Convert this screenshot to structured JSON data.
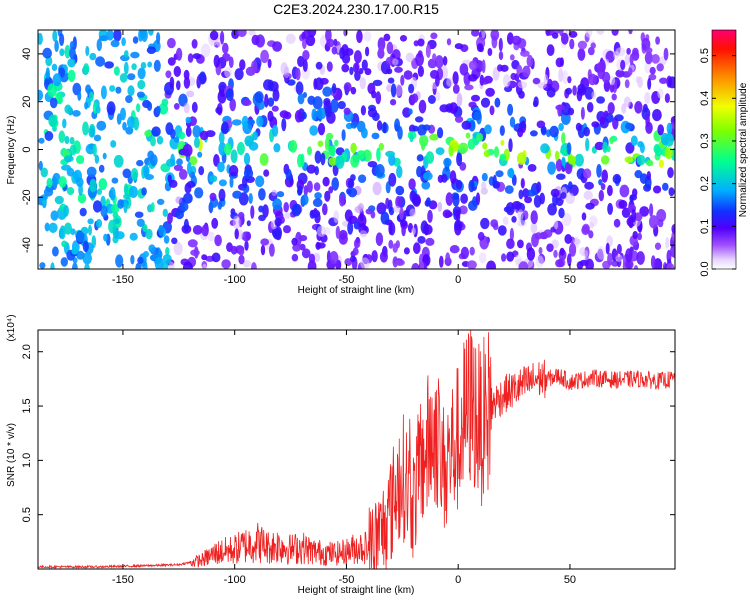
{
  "title": "C2E3.2024.230.17.00.R15",
  "chart_data": [
    {
      "type": "heatmap",
      "xlabel": "Height of straight line (km)",
      "ylabel": "Frequency (Hz)",
      "xlim": [
        -188,
        97
      ],
      "ylim": [
        -50,
        50
      ],
      "xticks": [
        -150,
        -100,
        -50,
        0,
        50
      ],
      "yticks": [
        -40,
        -20,
        0,
        20,
        40
      ],
      "colorbar": {
        "label": "Normalized spectral amplitude",
        "range": [
          0,
          0.56
        ],
        "ticks": [
          "0.0",
          "0.1",
          "0.2",
          "0.3",
          "0.4",
          "0.5"
        ],
        "colors": [
          "#ffffff",
          "#d8b8ff",
          "#8000ff",
          "#2020ff",
          "#00c0ff",
          "#00ff80",
          "#80ff00",
          "#ffff00",
          "#ff8000",
          "#ff0000",
          "#ff0080"
        ]
      },
      "description_values": {
        "band_center_hz": 0,
        "band_peak_amplitude_range": [
          0.2,
          0.45
        ]
      }
    },
    {
      "type": "line",
      "xlabel": "Height of straight line (km)",
      "ylabel": "SNR (10 * v/v)",
      "multiplier_label": "(x10⁴)",
      "xlim": [
        -188,
        97
      ],
      "ylim": [
        0,
        2.2
      ],
      "xticks": [
        -150,
        -100,
        -50,
        0,
        50
      ],
      "yticks": [
        "0.5",
        "1.0",
        "1.5",
        "2.0"
      ],
      "line_color": "#ee2020",
      "series": [
        {
          "x": [
            -188,
            -160,
            -140,
            -125,
            -115,
            -108,
            -100,
            -95,
            -90,
            -85,
            -80,
            -75,
            -70,
            -65,
            -60,
            -55,
            -50,
            -45,
            -40,
            -35,
            -30,
            -27,
            -24,
            -20,
            -17,
            -14,
            -10,
            -7,
            -4,
            0,
            3,
            6,
            10,
            13,
            17,
            20,
            25,
            30,
            35,
            40,
            45,
            50,
            60,
            70,
            80,
            90,
            97
          ],
          "values": [
            0.02,
            0.02,
            0.03,
            0.04,
            0.08,
            0.15,
            0.18,
            0.22,
            0.25,
            0.2,
            0.22,
            0.18,
            0.2,
            0.16,
            0.15,
            0.14,
            0.16,
            0.2,
            0.2,
            0.3,
            0.55,
            0.8,
            0.85,
            0.6,
            0.95,
            1.1,
            1.3,
            0.9,
            1.05,
            1.2,
            1.4,
            1.55,
            1.3,
            1.45,
            1.55,
            1.6,
            1.65,
            1.7,
            1.75,
            1.75,
            1.78,
            1.72,
            1.76,
            1.74,
            1.75,
            1.73,
            1.75
          ]
        }
      ]
    }
  ]
}
